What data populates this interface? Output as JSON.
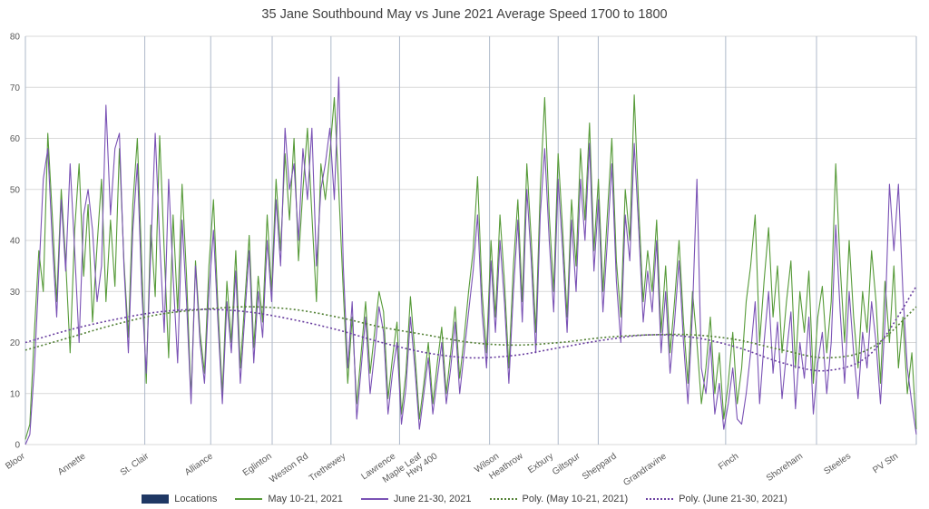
{
  "chart_data": {
    "type": "line",
    "title": "35 Jane Southbound May vs June 2021 Average Speed 1700 to 1800",
    "xlabel": "",
    "ylabel": "",
    "ylim": [
      0,
      80
    ],
    "ytick": 10,
    "grid": "horizontal and vertical",
    "legend_position": "bottom",
    "colors": {
      "hgrid": "#d9d9d9",
      "vgrid": "#aeb9ca",
      "may_line": "#569a38",
      "june_line": "#7a52b5",
      "poly_may": "#538135",
      "poly_june": "#6a3fa0",
      "locations_swatch": "#1f3864",
      "title_text": "#404040",
      "axis_text": "#595959"
    },
    "vgrid": [
      0,
      0.134,
      0.208,
      0.277,
      0.343,
      0.42,
      0.521,
      0.598,
      0.643,
      0.786,
      0.888,
      1.0
    ],
    "locations": [
      {
        "label": "Bloor",
        "x": 0.0
      },
      {
        "label": "Annette",
        "x": 0.068
      },
      {
        "label": "St. Clair",
        "x": 0.139
      },
      {
        "label": "Alliance",
        "x": 0.211
      },
      {
        "label": "Eglinton",
        "x": 0.277
      },
      {
        "label": "Weston Rd",
        "x": 0.318
      },
      {
        "label": "Trethewey",
        "x": 0.36
      },
      {
        "label": "Lawrence",
        "x": 0.416
      },
      {
        "label": "Maple Leaf",
        "x": 0.445
      },
      {
        "label": "Hwy 400",
        "x": 0.463
      },
      {
        "label": "Wilson",
        "x": 0.532
      },
      {
        "label": "Heathrow",
        "x": 0.559
      },
      {
        "label": "Exbury",
        "x": 0.593
      },
      {
        "label": "Giltspur",
        "x": 0.623
      },
      {
        "label": "Sheppard",
        "x": 0.664
      },
      {
        "label": "Grandravine",
        "x": 0.72
      },
      {
        "label": "Finch",
        "x": 0.801
      },
      {
        "label": "Shoreham",
        "x": 0.873
      },
      {
        "label": "Steeles",
        "x": 0.927
      },
      {
        "label": "PV Stn",
        "x": 0.98
      }
    ],
    "series": [
      {
        "name": "May 10-21, 2021",
        "color": "#569a38",
        "width": 1.1,
        "smooth": false,
        "dash": "",
        "values": [
          1,
          4,
          22,
          38,
          30,
          61,
          45,
          28,
          50,
          36,
          18,
          42,
          55,
          33,
          47,
          24,
          39,
          52,
          28,
          44,
          31,
          58,
          36,
          21,
          47,
          60,
          35,
          12,
          43,
          29,
          60.5,
          38,
          17,
          45,
          26,
          51,
          33,
          9,
          36,
          22,
          14,
          35,
          48,
          27,
          10,
          32,
          20,
          38,
          15,
          28,
          41,
          19,
          33,
          24,
          45,
          30,
          52,
          38,
          57,
          44,
          60,
          36,
          50,
          62,
          45,
          28,
          55,
          48,
          57,
          68,
          50,
          30,
          12,
          25,
          8,
          18,
          28,
          14,
          22,
          30,
          26,
          9,
          17,
          24,
          6,
          14,
          29,
          18,
          5,
          12,
          20,
          8,
          16,
          23,
          10,
          18,
          27,
          13,
          21,
          30,
          38,
          52.5,
          30,
          18,
          40,
          25,
          45,
          32,
          15,
          35,
          48,
          28,
          55,
          40,
          22,
          50,
          68,
          45,
          30,
          57,
          42,
          25,
          48,
          35,
          58,
          44,
          63,
          38,
          52,
          30,
          45,
          60,
          36,
          25,
          50,
          40,
          68.5,
          46,
          28,
          38,
          30,
          44,
          22,
          35,
          18,
          28,
          40,
          24,
          12,
          30,
          20,
          8,
          15,
          25,
          10,
          18,
          5,
          12,
          22,
          8,
          15,
          28,
          35,
          45,
          20,
          32,
          42.5,
          25,
          35,
          18,
          28,
          36,
          15,
          30,
          22,
          34,
          12,
          25,
          31,
          18,
          28,
          55,
          35,
          20,
          40,
          25,
          15,
          30,
          22,
          38,
          28,
          12,
          32,
          20,
          35,
          15,
          25,
          10,
          18,
          3
        ]
      },
      {
        "name": "June 21-30, 2021",
        "color": "#7a52b5",
        "width": 1.1,
        "smooth": false,
        "dash": "",
        "values": [
          0,
          2,
          15,
          33,
          52,
          58,
          40,
          25,
          48,
          34,
          55,
          38,
          20,
          45,
          50,
          42,
          28,
          35,
          66.5,
          45,
          58,
          61,
          35,
          18,
          42,
          55,
          30,
          14,
          38,
          61,
          40,
          22,
          52,
          33,
          16,
          44,
          28,
          8,
          35,
          20,
          12,
          30,
          42,
          24,
          8,
          28,
          18,
          34,
          12,
          25,
          38,
          16,
          30,
          21,
          40,
          28,
          48,
          35,
          62,
          50,
          55,
          40,
          58,
          48,
          62,
          35,
          50,
          55,
          62,
          48,
          72,
          35,
          15,
          28,
          5,
          15,
          25,
          10,
          18,
          27,
          22,
          6,
          14,
          20,
          4,
          11,
          25,
          15,
          3,
          10,
          17,
          6,
          13,
          20,
          8,
          15,
          24,
          10,
          18,
          26,
          34,
          45,
          26,
          15,
          36,
          22,
          40,
          28,
          12,
          30,
          44,
          24,
          50,
          36,
          18,
          45,
          58,
          40,
          26,
          52,
          38,
          22,
          44,
          30,
          52,
          40,
          59,
          34,
          48,
          26,
          40,
          55,
          32,
          20,
          45,
          36,
          59,
          42,
          24,
          34,
          26,
          40,
          18,
          30,
          14,
          24,
          36,
          20,
          8,
          26,
          52,
          15,
          10,
          20,
          6,
          12,
          3,
          8,
          15,
          5,
          4,
          10,
          18,
          28,
          8,
          20,
          30,
          14,
          24,
          9,
          18,
          26,
          7,
          20,
          13,
          25,
          6,
          16,
          22,
          10,
          20,
          43,
          26,
          12,
          30,
          18,
          9,
          22,
          15,
          28,
          20,
          8,
          24,
          51,
          38,
          51,
          30,
          15,
          8,
          2
        ]
      },
      {
        "name": "Poly. (May 10-21, 2021)",
        "color": "#538135",
        "width": 1.6,
        "smooth": true,
        "dash": "2 2.5",
        "values": [
          18.5,
          21,
          23.5,
          25.5,
          26.5,
          27,
          26.5,
          25,
          23,
          21.5,
          20,
          19.5,
          20,
          21,
          21.5,
          21.5,
          20.5,
          18.5,
          17,
          19,
          27
        ]
      },
      {
        "name": "Poly. (June 21-30, 2021)",
        "color": "#6a3fa0",
        "width": 1.6,
        "smooth": true,
        "dash": "2 2.5",
        "values": [
          20,
          22.5,
          24.5,
          26,
          26.5,
          26,
          24.5,
          22.5,
          20,
          18,
          17,
          17.5,
          19,
          20.5,
          21.5,
          21,
          19,
          16,
          14.5,
          18,
          31
        ]
      }
    ],
    "legend": [
      {
        "label": "Locations",
        "type": "box",
        "color": "#1f3864"
      },
      {
        "label": "May 10-21, 2021",
        "type": "line",
        "color": "#569a38"
      },
      {
        "label": "June 21-30, 2021",
        "type": "line",
        "color": "#7a52b5"
      },
      {
        "label": "Poly. (May 10-21, 2021)",
        "type": "dotted",
        "color": "#538135"
      },
      {
        "label": "Poly. (June 21-30, 2021)",
        "type": "dotted",
        "color": "#6a3fa0"
      }
    ]
  }
}
